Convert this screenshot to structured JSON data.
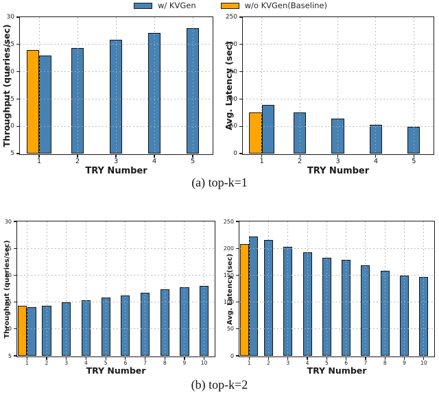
{
  "figure": {
    "legend": {
      "items": [
        {
          "label": "w/ KVGen",
          "color": "#4682b4",
          "role": "main"
        },
        {
          "label": "w/o KVGen(Baseline)",
          "color": "#ffa500",
          "role": "baseline"
        }
      ],
      "position": "top-center"
    },
    "captions": {
      "a": "(a) top-k=1",
      "b": "(b) top-k=2"
    }
  },
  "colors": {
    "bar_blue": "#4682b4",
    "bar_orange": "#ffa500",
    "bar_edge": "#141414",
    "grid": "#adadad",
    "axis": "#1a1a1a",
    "text": "#1a1a1a"
  },
  "chart_data": [
    {
      "id": "throughput-topk1",
      "type": "bar",
      "title": "",
      "xlabel": "TRY Number",
      "ylabel": "Throughput (queries/sec)",
      "ylim": [
        5,
        30
      ],
      "yticks": [
        5,
        10,
        15,
        20,
        25,
        30
      ],
      "categories": [
        "1",
        "2",
        "3",
        "4",
        "5"
      ],
      "grid": true,
      "series": [
        {
          "name": "w/o KVGen(Baseline)",
          "role": "baseline",
          "color": "#ffa500",
          "values": [
            24.0,
            null,
            null,
            null,
            null
          ]
        },
        {
          "name": "w/ KVGen",
          "role": "main",
          "color": "#4682b4",
          "values": [
            23.0,
            24.4,
            25.8,
            27.1,
            28.0
          ]
        }
      ]
    },
    {
      "id": "latency-topk1",
      "type": "bar",
      "title": "",
      "xlabel": "TRY Number",
      "ylabel": "Avg. Latency (sec)",
      "ylim": [
        0,
        250
      ],
      "yticks": [
        0,
        50,
        100,
        150,
        200,
        250
      ],
      "categories": [
        "1",
        "2",
        "3",
        "4",
        "5"
      ],
      "grid": true,
      "series": [
        {
          "name": "w/o KVGen(Baseline)",
          "role": "baseline",
          "color": "#ffa500",
          "values": [
            76,
            null,
            null,
            null,
            null
          ]
        },
        {
          "name": "w/ KVGen",
          "role": "main",
          "color": "#4682b4",
          "values": [
            89,
            76,
            64,
            53,
            49
          ]
        }
      ]
    },
    {
      "id": "throughput-topk2",
      "type": "bar",
      "title": "",
      "xlabel": "TRY Number",
      "ylabel": "Throughput (queries/sec)",
      "ylim": [
        5,
        30
      ],
      "yticks": [
        5,
        10,
        15,
        20,
        25,
        30
      ],
      "categories": [
        "1",
        "2",
        "3",
        "4",
        "5",
        "6",
        "7",
        "8",
        "9",
        "10"
      ],
      "grid": true,
      "series": [
        {
          "name": "w/o KVGen(Baseline)",
          "role": "baseline",
          "color": "#ffa500",
          "values": [
            14.3,
            null,
            null,
            null,
            null,
            null,
            null,
            null,
            null,
            null
          ]
        },
        {
          "name": "w/ KVGen",
          "role": "main",
          "color": "#4682b4",
          "values": [
            14.1,
            14.3,
            14.9,
            15.3,
            15.9,
            16.2,
            16.7,
            17.4,
            17.8,
            18.0
          ]
        }
      ]
    },
    {
      "id": "latency-topk2",
      "type": "bar",
      "title": "",
      "xlabel": "TRY Number",
      "ylabel": "Avg. Latency (sec)",
      "ylim": [
        0,
        250
      ],
      "yticks": [
        0,
        50,
        100,
        150,
        200,
        250
      ],
      "categories": [
        "1",
        "2",
        "3",
        "4",
        "5",
        "6",
        "7",
        "8",
        "9",
        "10"
      ],
      "grid": true,
      "series": [
        {
          "name": "w/o KVGen(Baseline)",
          "role": "baseline",
          "color": "#ffa500",
          "values": [
            208,
            null,
            null,
            null,
            null,
            null,
            null,
            null,
            null,
            null
          ]
        },
        {
          "name": "w/ KVGen",
          "role": "main",
          "color": "#4682b4",
          "values": [
            222,
            215,
            203,
            192,
            182,
            178,
            169,
            158,
            149,
            147
          ]
        }
      ]
    }
  ]
}
